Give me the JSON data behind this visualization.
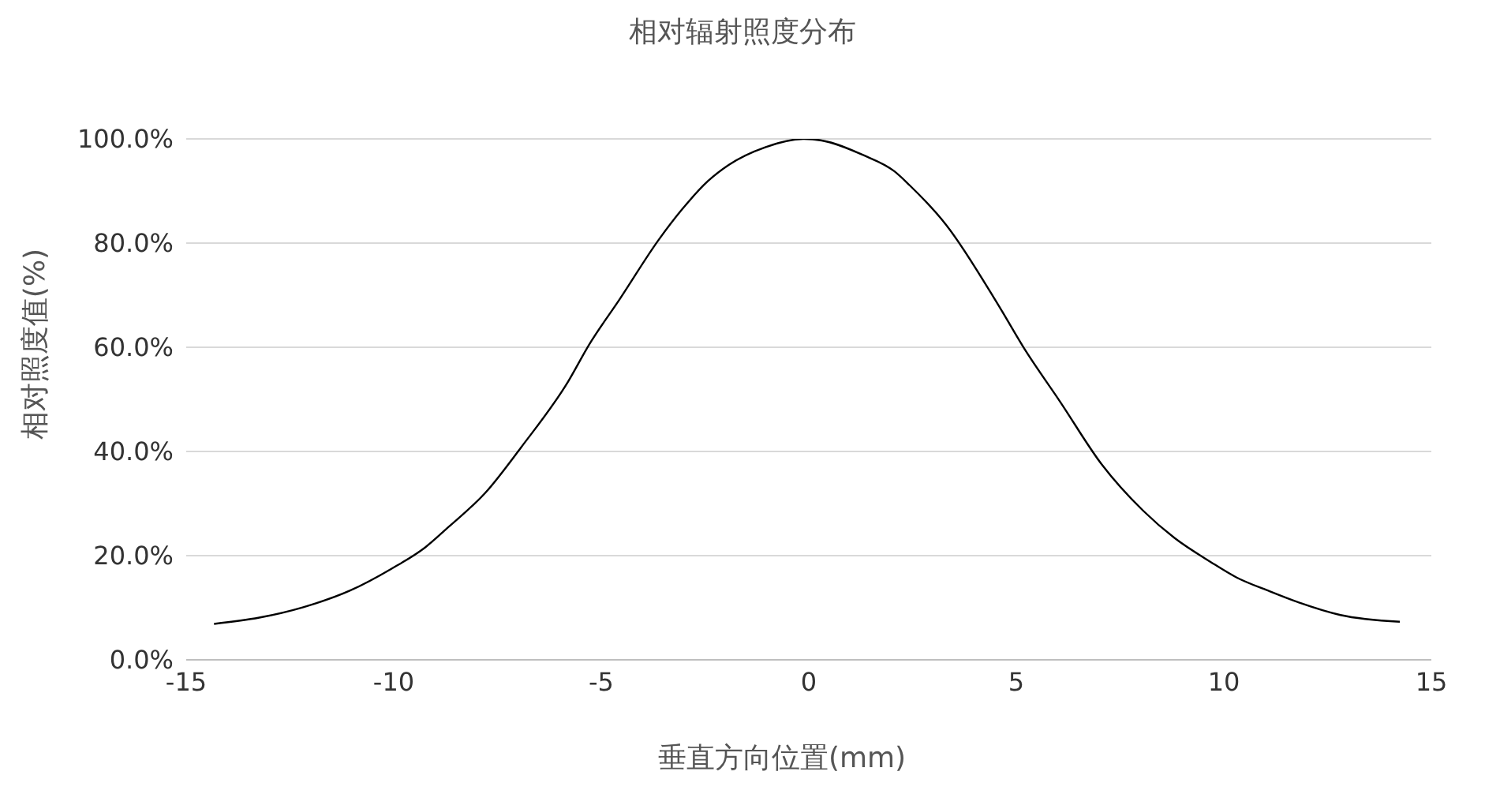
{
  "chart_data": {
    "type": "line",
    "title": "相对辐射照度分布",
    "xlabel": "垂直方向位置(mm)",
    "ylabel": "相对照度值(%)",
    "xlim": [
      -15,
      15
    ],
    "xticks": [
      -15,
      -10,
      -5,
      0,
      5,
      10,
      15
    ],
    "ylim": [
      0,
      100
    ],
    "yticks": [
      {
        "value": 0,
        "label": "0.0%"
      },
      {
        "value": 20,
        "label": "20.0%"
      },
      {
        "value": 40,
        "label": "40.0%"
      },
      {
        "value": 60,
        "label": "60.0%"
      },
      {
        "value": 80,
        "label": "80.0%"
      },
      {
        "value": 100,
        "label": "100.0%"
      }
    ],
    "grid": "y",
    "legend": false,
    "marker": "none",
    "line_style": "solid",
    "series": [
      {
        "color": "#000000",
        "x": [
          -14.33,
          -13.24,
          -12.18,
          -11.05,
          -10.05,
          -9.24,
          -8.68,
          -7.8,
          -6.93,
          -5.8,
          -5.3,
          -4.55,
          -3.61,
          -3.05,
          -2.43,
          -1.93,
          -1.05,
          -0.11,
          0.31,
          1.31,
          2.06,
          2.43,
          3.31,
          4.56,
          5.18,
          6.06,
          7.06,
          8.06,
          8.81,
          9.68,
          10.31,
          11.06,
          11.81,
          12.81,
          14.24
        ],
        "values": [
          6.9,
          8.1,
          10.1,
          13.3,
          17.5,
          21.6,
          25.5,
          32.0,
          40.8,
          53.4,
          60.4,
          69.3,
          80.7,
          86.5,
          91.9,
          95.0,
          98.4,
          100,
          99.7,
          96.9,
          93.8,
          91.1,
          83.5,
          68.2,
          59.9,
          49.5,
          37.5,
          28.6,
          23.4,
          18.8,
          15.8,
          13.3,
          11.0,
          8.6,
          7.3
        ]
      }
    ]
  }
}
